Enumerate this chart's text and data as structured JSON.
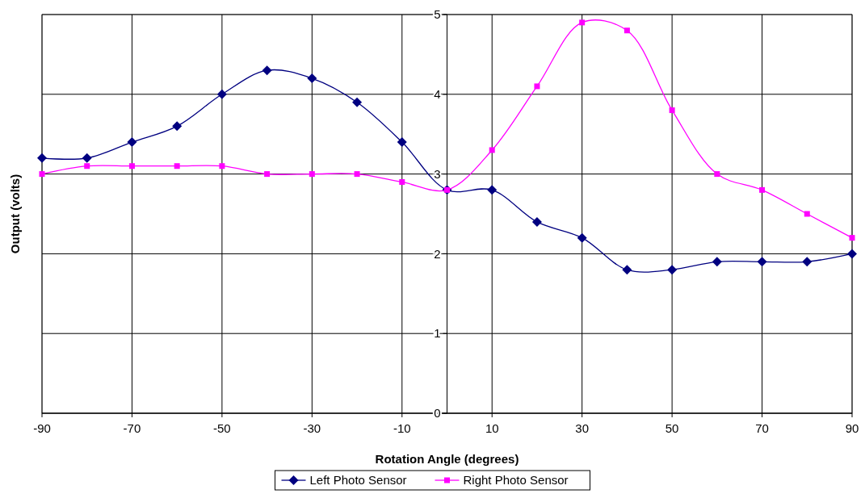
{
  "chart_data": {
    "type": "line",
    "xlabel": "Rotation Angle (degrees)",
    "ylabel": "Output (volts)",
    "x": [
      -90,
      -80,
      -70,
      -60,
      -50,
      -40,
      -30,
      -20,
      -10,
      0,
      10,
      20,
      30,
      40,
      50,
      60,
      70,
      80,
      90
    ],
    "series": [
      {
        "name": "Left Photo Sensor",
        "color": "#000080",
        "marker": "diamond",
        "values": [
          3.2,
          3.2,
          3.4,
          3.6,
          4.0,
          4.3,
          4.2,
          3.9,
          3.4,
          2.8,
          2.8,
          2.4,
          2.2,
          1.8,
          1.8,
          1.9,
          1.9,
          1.9,
          2.0
        ]
      },
      {
        "name": "Right Photo Sensor",
        "color": "#ff00ff",
        "marker": "square",
        "values": [
          3.0,
          3.1,
          3.1,
          3.1,
          3.1,
          3.0,
          3.0,
          3.0,
          2.9,
          2.8,
          3.3,
          4.1,
          4.9,
          4.8,
          3.8,
          3.0,
          2.8,
          2.5,
          2.2
        ]
      }
    ],
    "xlim": [
      -90,
      90
    ],
    "xticks": [
      -90,
      -70,
      -50,
      -30,
      -10,
      10,
      30,
      50,
      70,
      90
    ],
    "ylim": [
      0,
      5
    ],
    "yticks": [
      0,
      1,
      2,
      3,
      4,
      5
    ],
    "grid": true,
    "legend": "bottom",
    "line_style": "solid"
  }
}
